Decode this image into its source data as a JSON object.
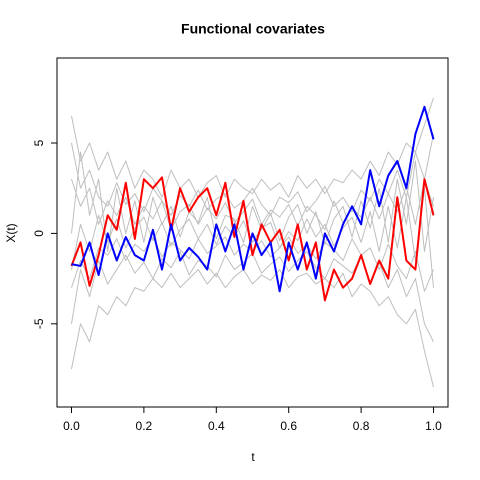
{
  "chart_data": {
    "type": "line",
    "title": "Functional covariates",
    "x_label": "t",
    "y_label": "X(t)",
    "x": [
      0,
      0.025,
      0.05,
      0.075,
      0.1,
      0.125,
      0.15,
      0.175,
      0.2,
      0.225,
      0.25,
      0.275,
      0.3,
      0.325,
      0.35,
      0.375,
      0.4,
      0.425,
      0.45,
      0.475,
      0.5,
      0.525,
      0.55,
      0.575,
      0.6,
      0.625,
      0.65,
      0.675,
      0.7,
      0.725,
      0.75,
      0.775,
      0.8,
      0.825,
      0.85,
      0.875,
      0.9,
      0.925,
      0.95,
      0.975,
      1
    ],
    "series": [
      {
        "color": "#bebebe",
        "values": [
          6.5,
          4,
          5,
          3.5,
          4.5,
          3,
          4,
          2.5,
          3.5,
          3,
          2,
          3.5,
          2.5,
          3,
          2,
          2.8,
          3.2,
          2,
          3,
          2.5,
          2.2,
          3,
          2.4,
          2.8,
          2,
          3.2,
          2.5,
          3,
          2.2,
          3,
          2.8,
          3.5,
          3,
          4,
          3.2,
          4.5,
          3.8,
          5,
          4.5,
          6,
          7.5
        ]
      },
      {
        "color": "#bebebe",
        "values": [
          -7.5,
          -5,
          -6,
          -4,
          -4.5,
          -3.5,
          -4,
          -3,
          -3.2,
          -2.5,
          -3,
          -2.2,
          -3,
          -2.5,
          -2,
          -2.8,
          -2.2,
          -3,
          -2.4,
          -2,
          -2.8,
          -2.3,
          -2.6,
          -2,
          -3,
          -2.4,
          -2.2,
          -2.8,
          -2.5,
          -3,
          -2.2,
          -3.5,
          -2.8,
          -3.2,
          -4,
          -3.5,
          -4.5,
          -5,
          -4.2,
          -6.5,
          -8.5
        ]
      },
      {
        "color": "#bebebe",
        "values": [
          3,
          1.5,
          2.5,
          0.5,
          1.8,
          1,
          2,
          0.5,
          1.5,
          0.8,
          1.8,
          0.2,
          1.2,
          1.6,
          0.5,
          1.4,
          0.8,
          1.7,
          0.6,
          1.2,
          1.9,
          0.5,
          1.3,
          0.9,
          1.6,
          0.4,
          1.5,
          1,
          0.2,
          1.8,
          0.6,
          1.4,
          0.9,
          2,
          0.8,
          2.2,
          1.2,
          2.6,
          0.5,
          3,
          1.5
        ]
      },
      {
        "color": "#bebebe",
        "values": [
          -3,
          -1.5,
          -2.5,
          -0.8,
          -1.2,
          -0.3,
          -1.5,
          -0.6,
          -1,
          -0.2,
          -1.3,
          -0.5,
          -0.9,
          -1.4,
          -0.3,
          -1.1,
          -0.7,
          -0.2,
          -1.2,
          -0.6,
          -1,
          -0.4,
          -1.3,
          -0.8,
          -0.2,
          -1.1,
          -0.6,
          -1.4,
          -0.5,
          -0.9,
          -1.5,
          -0.3,
          -1.2,
          -0.8,
          -2,
          -0.6,
          -1.8,
          -2.5,
          -1,
          -3.2,
          -2
        ]
      },
      {
        "color": "#bebebe",
        "values": [
          0,
          4.5,
          1,
          3,
          -1,
          2.5,
          0,
          1.8,
          -0.5,
          2,
          0.5,
          1.5,
          -0.2,
          1.2,
          0.6,
          2,
          -0.3,
          1,
          0.8,
          -0.5,
          1.5,
          0.2,
          1.1,
          -0.4,
          0.9,
          1.6,
          0,
          1.2,
          -0.6,
          0.8,
          1.5,
          -0.2,
          1.8,
          0.3,
          2.5,
          -0.5,
          3,
          0.5,
          4,
          -1,
          2
        ]
      },
      {
        "color": "#bebebe",
        "values": [
          -5,
          -2,
          -3.5,
          -1.5,
          -2.8,
          -2,
          -1.2,
          -2.2,
          -1.6,
          -2.5,
          -1.4,
          -1.9,
          -1,
          -2.3,
          -1.5,
          -1.8,
          -2.4,
          -1.2,
          -2,
          -1.6,
          -1.1,
          -2.2,
          -1.7,
          -1.3,
          -2.1,
          -1.5,
          -1,
          -1.9,
          -2.5,
          -1.4,
          -1.8,
          -2.2,
          -1.3,
          -2.8,
          -1.6,
          -3,
          -2,
          -3.5,
          -2.5,
          -5,
          -6
        ]
      },
      {
        "color": "#bebebe",
        "values": [
          5,
          2.5,
          3.5,
          2,
          1.5,
          2.8,
          1.6,
          2.2,
          1.2,
          2.5,
          1.8,
          1,
          2.1,
          1.5,
          2.4,
          1.3,
          1.9,
          2.2,
          1.4,
          1.8,
          2.5,
          1.6,
          1,
          2,
          1.7,
          2.3,
          1.2,
          1.8,
          2.6,
          1.5,
          2,
          1.2,
          2.4,
          1.8,
          3,
          2.2,
          3.5,
          2,
          4.5,
          3,
          5.5
        ]
      },
      {
        "color": "#bebebe",
        "values": [
          -2,
          0.5,
          -1,
          1,
          -0.5,
          0.8,
          -0.8,
          0.3,
          0.9,
          -0.4,
          0.6,
          -0.7,
          0.2,
          0.8,
          -0.3,
          0.5,
          -0.6,
          0.4,
          -0.2,
          0.7,
          -0.5,
          0.3,
          0.6,
          -0.8,
          0.1,
          -0.4,
          0.8,
          -0.2,
          0.5,
          -0.7,
          0.3,
          0.9,
          -0.5,
          1.2,
          -1,
          1.5,
          -0.8,
          2,
          -1.5,
          2.5,
          -3
        ]
      },
      {
        "color": "#ff0000",
        "values": [
          -1.8,
          -0.5,
          -2.9,
          -1.2,
          1,
          0.2,
          2.8,
          -0.3,
          3,
          2.5,
          3.1,
          0.2,
          2.5,
          1.2,
          2,
          2.5,
          1,
          2.8,
          -0.2,
          1.8,
          -1.2,
          0.5,
          -0.5,
          0.2,
          -1.5,
          0.5,
          -2,
          -0.5,
          -3.7,
          -2,
          -3,
          -2.5,
          -1.2,
          -2.8,
          -1.5,
          -2.5,
          2,
          -1.5,
          -2,
          3,
          1
        ]
      },
      {
        "color": "#0000ff",
        "values": [
          -1.7,
          -1.8,
          -0.5,
          -2.3,
          0,
          -1.5,
          -0.2,
          -1.2,
          -1.5,
          0.2,
          -2,
          0.5,
          -1.5,
          -0.8,
          -1.3,
          -2,
          0.5,
          -1,
          0.5,
          -2,
          0,
          -1.2,
          -0.5,
          -3.2,
          -0.5,
          -2,
          -0.5,
          -2.5,
          0,
          -1,
          0.5,
          1.5,
          0.5,
          3.5,
          1.5,
          3.2,
          4,
          2.5,
          5.5,
          7,
          5.2
        ]
      }
    ],
    "xlim": [
      -0.04,
      1.04
    ],
    "ylim": [
      -9.6,
      9.7
    ],
    "xticks": [
      {
        "value": 0,
        "label": "0.0"
      },
      0.2,
      0.4,
      0.6,
      0.8,
      {
        "value": 1,
        "label": "1.0"
      }
    ],
    "yticks": [
      -5,
      0,
      5
    ]
  }
}
